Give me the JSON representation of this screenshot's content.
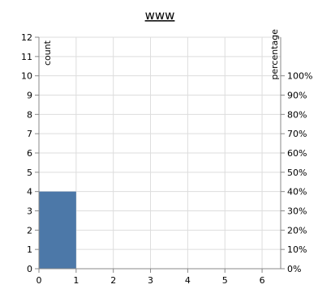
{
  "chart_data": {
    "type": "bar",
    "title": "www",
    "x": [
      0,
      1,
      2,
      3,
      4,
      5,
      6
    ],
    "xlim": [
      0,
      6.5
    ],
    "bars": [
      {
        "x0": 0,
        "x1": 1,
        "value": 4
      }
    ],
    "ylabel": "count",
    "ylim": [
      0,
      12
    ],
    "yticks": [
      0,
      1,
      2,
      3,
      4,
      5,
      6,
      7,
      8,
      9,
      10,
      11,
      12
    ],
    "y2label": "percentage",
    "y2ticks": [
      "0%",
      "10%",
      "20%",
      "30%",
      "40%",
      "50%",
      "60%",
      "70%",
      "80%",
      "90%",
      "100%"
    ],
    "grid": true,
    "colors": {
      "bar": "#4c78a8",
      "grid": "#dddddd",
      "axis": "#888888"
    }
  }
}
